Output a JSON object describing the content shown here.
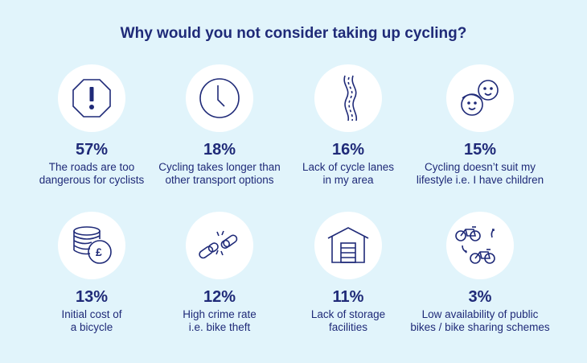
{
  "title": "Why would you not consider taking up cycling?",
  "items": [
    {
      "icon": "warning-octagon-icon",
      "percent": "57%",
      "line1": "The roads are too",
      "line2": "dangerous for cyclists"
    },
    {
      "icon": "clock-icon",
      "percent": "18%",
      "line1": "Cycling takes longer than",
      "line2": "other transport options"
    },
    {
      "icon": "winding-road-icon",
      "percent": "16%",
      "line1": "Lack of cycle lanes",
      "line2": "in my area"
    },
    {
      "icon": "children-faces-icon",
      "percent": "15%",
      "line1": "Cycling doesn’t suit my",
      "line2": "lifestyle i.e. I have children"
    },
    {
      "icon": "coins-pound-icon",
      "percent": "13%",
      "line1": "Initial cost of",
      "line2": "a bicycle"
    },
    {
      "icon": "broken-chain-icon",
      "percent": "12%",
      "line1": "High crime rate",
      "line2": "i.e. bike theft"
    },
    {
      "icon": "garage-icon",
      "percent": "11%",
      "line1": "Lack of storage",
      "line2": "facilities"
    },
    {
      "icon": "bike-sharing-icon",
      "percent": "3%",
      "line1": "Low availability of public",
      "line2": "bikes / bike sharing schemes"
    }
  ],
  "colors": {
    "background": "#e1f4fb",
    "text": "#1f2a78",
    "circle": "#ffffff"
  }
}
